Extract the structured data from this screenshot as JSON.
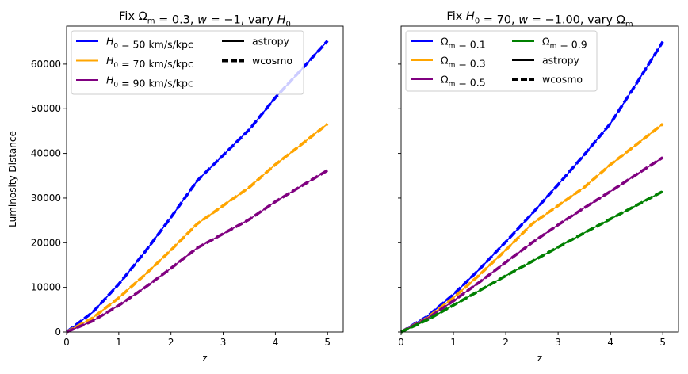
{
  "figure": {
    "ylabel": "Luminosity Distance"
  },
  "chart_data": [
    {
      "type": "line",
      "title": "Fix Ωm = 0.3, w = −1, vary H0",
      "title_parts": [
        [
          "Fix ",
          ""
        ],
        [
          "Ω",
          ""
        ],
        [
          "m",
          "sub"
        ],
        [
          " = 0.3, ",
          ""
        ],
        [
          "w",
          "it"
        ],
        [
          " = −1, vary ",
          ""
        ],
        [
          "H",
          "it"
        ],
        [
          "0",
          "sub"
        ]
      ],
      "xlabel": "z",
      "ylabel": "Luminosity Distance",
      "xlim": [
        0,
        5.3
      ],
      "ylim": [
        0,
        68500
      ],
      "xticks": [
        0,
        1,
        2,
        3,
        4,
        5
      ],
      "yticks": [
        0,
        10000,
        20000,
        30000,
        40000,
        50000,
        60000
      ],
      "x": [
        0,
        0.5,
        1,
        1.5,
        2,
        2.5,
        3,
        3.5,
        4,
        4.5,
        5
      ],
      "legend_position": "top-left",
      "legend_columns": 2,
      "series": [
        {
          "name": "H0 = 50 km/s/kpc",
          "label_parts": [
            [
              "H",
              "it"
            ],
            [
              "0",
              "sub"
            ],
            [
              " = 50 km/s/kpc",
              ""
            ]
          ],
          "color": "#0000ff",
          "values": [
            0,
            4420,
            10710,
            17930,
            25690,
            33850,
            39600,
            45350,
            52500,
            58800,
            65200
          ]
        },
        {
          "name": "H0 = 70 km/s/kpc",
          "label_parts": [
            [
              "H",
              "it"
            ],
            [
              "0",
              "sub"
            ],
            [
              " = 70 km/s/kpc",
              ""
            ]
          ],
          "color": "#ffa500",
          "values": [
            0,
            3160,
            7650,
            12810,
            18350,
            24180,
            28300,
            32400,
            37500,
            42000,
            46600
          ]
        },
        {
          "name": "H0 = 90 km/s/kpc",
          "label_parts": [
            [
              "H",
              "it"
            ],
            [
              "0",
              "sub"
            ],
            [
              " = 90 km/s/kpc",
              ""
            ]
          ],
          "color": "#800080",
          "values": [
            0,
            2460,
            5950,
            9960,
            14270,
            18810,
            22000,
            25200,
            29200,
            32700,
            36200
          ]
        }
      ],
      "style_legend": [
        {
          "name": "astropy",
          "color": "#000000",
          "dash": "solid"
        },
        {
          "name": "wcosmo",
          "color": "#000000",
          "dash": "dashed"
        }
      ]
    },
    {
      "type": "line",
      "title": "Fix H0 = 70, w = −1.00, vary Ωm",
      "title_parts": [
        [
          "Fix ",
          ""
        ],
        [
          "H",
          "it"
        ],
        [
          "0",
          "sub"
        ],
        [
          " = 70, ",
          ""
        ],
        [
          "w",
          "it"
        ],
        [
          " = −1.00, vary ",
          ""
        ],
        [
          "Ω",
          ""
        ],
        [
          "m",
          "sub"
        ]
      ],
      "xlabel": "z",
      "xlim": [
        0,
        5.3
      ],
      "ylim": [
        0,
        68500
      ],
      "xticks": [
        0,
        1,
        2,
        3,
        4,
        5
      ],
      "yticks": [
        0,
        10000,
        20000,
        30000,
        40000,
        50000,
        60000
      ],
      "x": [
        0,
        0.5,
        1,
        1.5,
        2,
        2.5,
        3,
        3.5,
        4,
        4.5,
        5
      ],
      "legend_position": "top-left",
      "legend_columns": 2,
      "series": [
        {
          "name": "Ωm = 0.1",
          "label_parts": [
            [
              "Ω",
              ""
            ],
            [
              "m",
              "sub"
            ],
            [
              " = 0.1",
              ""
            ]
          ],
          "color": "#0000ff",
          "values": [
            0,
            3500,
            8400,
            14100,
            20200,
            26500,
            33000,
            39700,
            46700,
            55700,
            65000
          ]
        },
        {
          "name": "Ωm = 0.3",
          "label_parts": [
            [
              "Ω",
              ""
            ],
            [
              "m",
              "sub"
            ],
            [
              " = 0.3",
              ""
            ]
          ],
          "color": "#ffa500",
          "values": [
            0,
            3160,
            7650,
            12810,
            18350,
            24180,
            28300,
            32400,
            37500,
            42000,
            46600
          ]
        },
        {
          "name": "Ωm = 0.5",
          "label_parts": [
            [
              "Ω",
              ""
            ],
            [
              "m",
              "sub"
            ],
            [
              " = 0.5",
              ""
            ]
          ],
          "color": "#800080",
          "values": [
            0,
            3000,
            6950,
            11200,
            15600,
            20000,
            24000,
            27800,
            31500,
            35300,
            39100
          ]
        },
        {
          "name": "Ωm = 0.9",
          "label_parts": [
            [
              "Ω",
              ""
            ],
            [
              "m",
              "sub"
            ],
            [
              " = 0.9",
              ""
            ]
          ],
          "color": "#008000",
          "values": [
            0,
            2700,
            6000,
            9300,
            12600,
            15800,
            19000,
            22200,
            25300,
            28400,
            31500
          ]
        }
      ],
      "style_legend": [
        {
          "name": "astropy",
          "color": "#000000",
          "dash": "solid"
        },
        {
          "name": "wcosmo",
          "color": "#000000",
          "dash": "dashed"
        }
      ]
    }
  ]
}
